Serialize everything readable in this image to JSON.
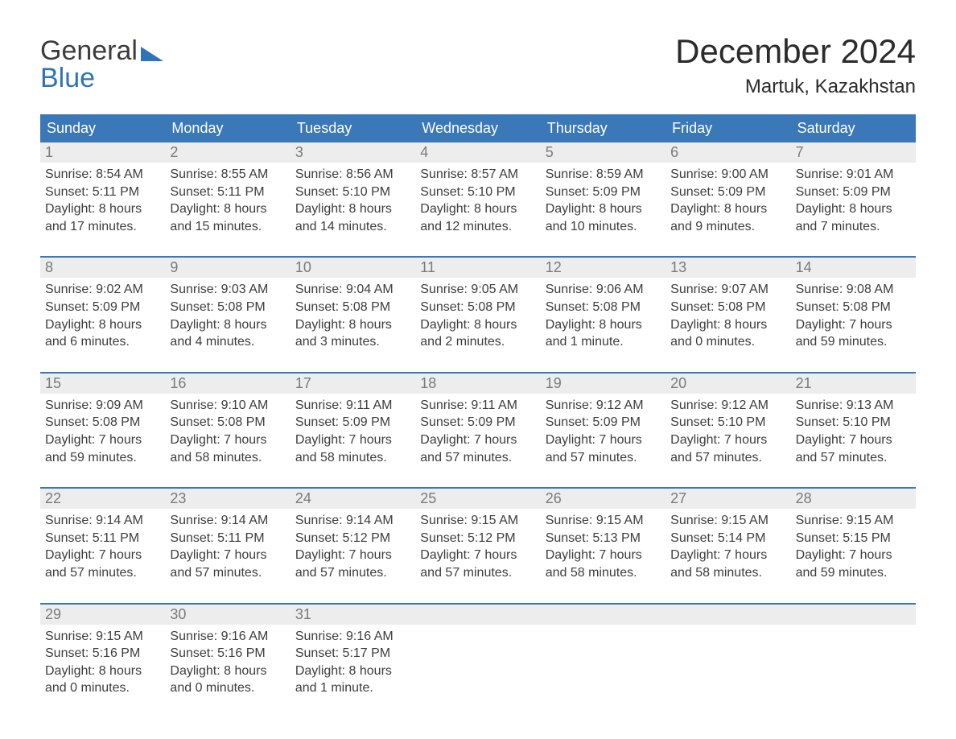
{
  "brand": {
    "part1": "General",
    "part2": "Blue"
  },
  "title": "December 2024",
  "location": "Martuk, Kazakhstan",
  "colors": {
    "header_bg": "#3b78b8",
    "header_text": "#ffffff",
    "daynum_bg": "#ededed",
    "daynum_text": "#7a7a7a",
    "body_text": "#3d3d3d",
    "rule": "#3b78b8",
    "page_bg": "#ffffff"
  },
  "layout": {
    "columns": 7,
    "weekday_fontsize": 18,
    "daynum_fontsize": 18,
    "body_fontsize": 16,
    "title_fontsize": 42,
    "location_fontsize": 24
  },
  "weekdays": [
    "Sunday",
    "Monday",
    "Tuesday",
    "Wednesday",
    "Thursday",
    "Friday",
    "Saturday"
  ],
  "labels": {
    "sunrise": "Sunrise: ",
    "sunset": "Sunset: ",
    "daylight": "Daylight: "
  },
  "weeks": [
    [
      {
        "n": "1",
        "sr": "8:54 AM",
        "ss": "5:11 PM",
        "dl": "8 hours and 17 minutes."
      },
      {
        "n": "2",
        "sr": "8:55 AM",
        "ss": "5:11 PM",
        "dl": "8 hours and 15 minutes."
      },
      {
        "n": "3",
        "sr": "8:56 AM",
        "ss": "5:10 PM",
        "dl": "8 hours and 14 minutes."
      },
      {
        "n": "4",
        "sr": "8:57 AM",
        "ss": "5:10 PM",
        "dl": "8 hours and 12 minutes."
      },
      {
        "n": "5",
        "sr": "8:59 AM",
        "ss": "5:09 PM",
        "dl": "8 hours and 10 minutes."
      },
      {
        "n": "6",
        "sr": "9:00 AM",
        "ss": "5:09 PM",
        "dl": "8 hours and 9 minutes."
      },
      {
        "n": "7",
        "sr": "9:01 AM",
        "ss": "5:09 PM",
        "dl": "8 hours and 7 minutes."
      }
    ],
    [
      {
        "n": "8",
        "sr": "9:02 AM",
        "ss": "5:09 PM",
        "dl": "8 hours and 6 minutes."
      },
      {
        "n": "9",
        "sr": "9:03 AM",
        "ss": "5:08 PM",
        "dl": "8 hours and 4 minutes."
      },
      {
        "n": "10",
        "sr": "9:04 AM",
        "ss": "5:08 PM",
        "dl": "8 hours and 3 minutes."
      },
      {
        "n": "11",
        "sr": "9:05 AM",
        "ss": "5:08 PM",
        "dl": "8 hours and 2 minutes."
      },
      {
        "n": "12",
        "sr": "9:06 AM",
        "ss": "5:08 PM",
        "dl": "8 hours and 1 minute."
      },
      {
        "n": "13",
        "sr": "9:07 AM",
        "ss": "5:08 PM",
        "dl": "8 hours and 0 minutes."
      },
      {
        "n": "14",
        "sr": "9:08 AM",
        "ss": "5:08 PM",
        "dl": "7 hours and 59 minutes."
      }
    ],
    [
      {
        "n": "15",
        "sr": "9:09 AM",
        "ss": "5:08 PM",
        "dl": "7 hours and 59 minutes."
      },
      {
        "n": "16",
        "sr": "9:10 AM",
        "ss": "5:08 PM",
        "dl": "7 hours and 58 minutes."
      },
      {
        "n": "17",
        "sr": "9:11 AM",
        "ss": "5:09 PM",
        "dl": "7 hours and 58 minutes."
      },
      {
        "n": "18",
        "sr": "9:11 AM",
        "ss": "5:09 PM",
        "dl": "7 hours and 57 minutes."
      },
      {
        "n": "19",
        "sr": "9:12 AM",
        "ss": "5:09 PM",
        "dl": "7 hours and 57 minutes."
      },
      {
        "n": "20",
        "sr": "9:12 AM",
        "ss": "5:10 PM",
        "dl": "7 hours and 57 minutes."
      },
      {
        "n": "21",
        "sr": "9:13 AM",
        "ss": "5:10 PM",
        "dl": "7 hours and 57 minutes."
      }
    ],
    [
      {
        "n": "22",
        "sr": "9:14 AM",
        "ss": "5:11 PM",
        "dl": "7 hours and 57 minutes."
      },
      {
        "n": "23",
        "sr": "9:14 AM",
        "ss": "5:11 PM",
        "dl": "7 hours and 57 minutes."
      },
      {
        "n": "24",
        "sr": "9:14 AM",
        "ss": "5:12 PM",
        "dl": "7 hours and 57 minutes."
      },
      {
        "n": "25",
        "sr": "9:15 AM",
        "ss": "5:12 PM",
        "dl": "7 hours and 57 minutes."
      },
      {
        "n": "26",
        "sr": "9:15 AM",
        "ss": "5:13 PM",
        "dl": "7 hours and 58 minutes."
      },
      {
        "n": "27",
        "sr": "9:15 AM",
        "ss": "5:14 PM",
        "dl": "7 hours and 58 minutes."
      },
      {
        "n": "28",
        "sr": "9:15 AM",
        "ss": "5:15 PM",
        "dl": "7 hours and 59 minutes."
      }
    ],
    [
      {
        "n": "29",
        "sr": "9:15 AM",
        "ss": "5:16 PM",
        "dl": "8 hours and 0 minutes."
      },
      {
        "n": "30",
        "sr": "9:16 AM",
        "ss": "5:16 PM",
        "dl": "8 hours and 0 minutes."
      },
      {
        "n": "31",
        "sr": "9:16 AM",
        "ss": "5:17 PM",
        "dl": "8 hours and 1 minute."
      },
      null,
      null,
      null,
      null
    ]
  ]
}
